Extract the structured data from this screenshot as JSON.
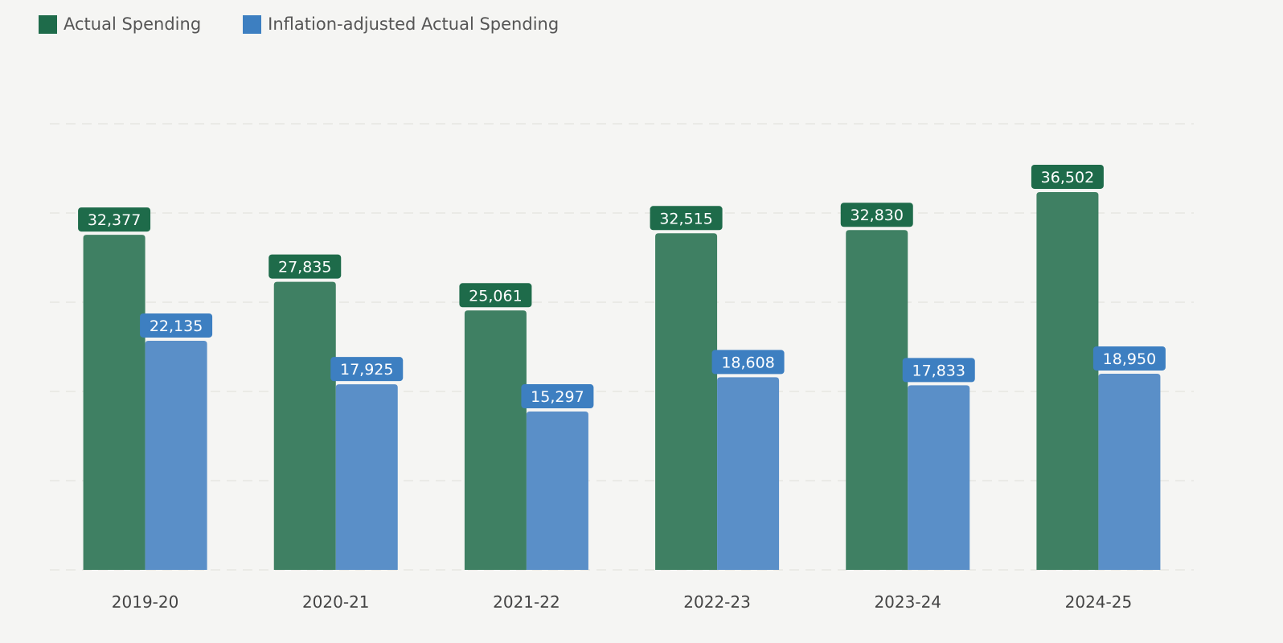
{
  "chart_data": {
    "type": "bar",
    "title": "",
    "xlabel": "",
    "ylabel": "",
    "categories": [
      "2019-20",
      "2020-21",
      "2021-22",
      "2022-23",
      "2023-24",
      "2024-25"
    ],
    "series": [
      {
        "name": "Actual Spending",
        "values": [
          32377,
          27835,
          25061,
          32515,
          32830,
          36502
        ],
        "labels": [
          "32,377",
          "27,835",
          "25,061",
          "32,515",
          "32,830",
          "36,502"
        ],
        "color": "#3f8063",
        "label_color": "#1e6b4a"
      },
      {
        "name": "Inflation-adjusted Actual Spending",
        "values": [
          22135,
          17925,
          15297,
          18608,
          17833,
          18950
        ],
        "labels": [
          "22,135",
          "17,925",
          "15,297",
          "18,608",
          "17,833",
          "18,950"
        ],
        "color": "#5a8fc8",
        "label_color": "#3d7fc1"
      }
    ],
    "ylim": [
      0,
      43100
    ],
    "grid": true,
    "gridlines": 5,
    "legend": "top-left"
  }
}
